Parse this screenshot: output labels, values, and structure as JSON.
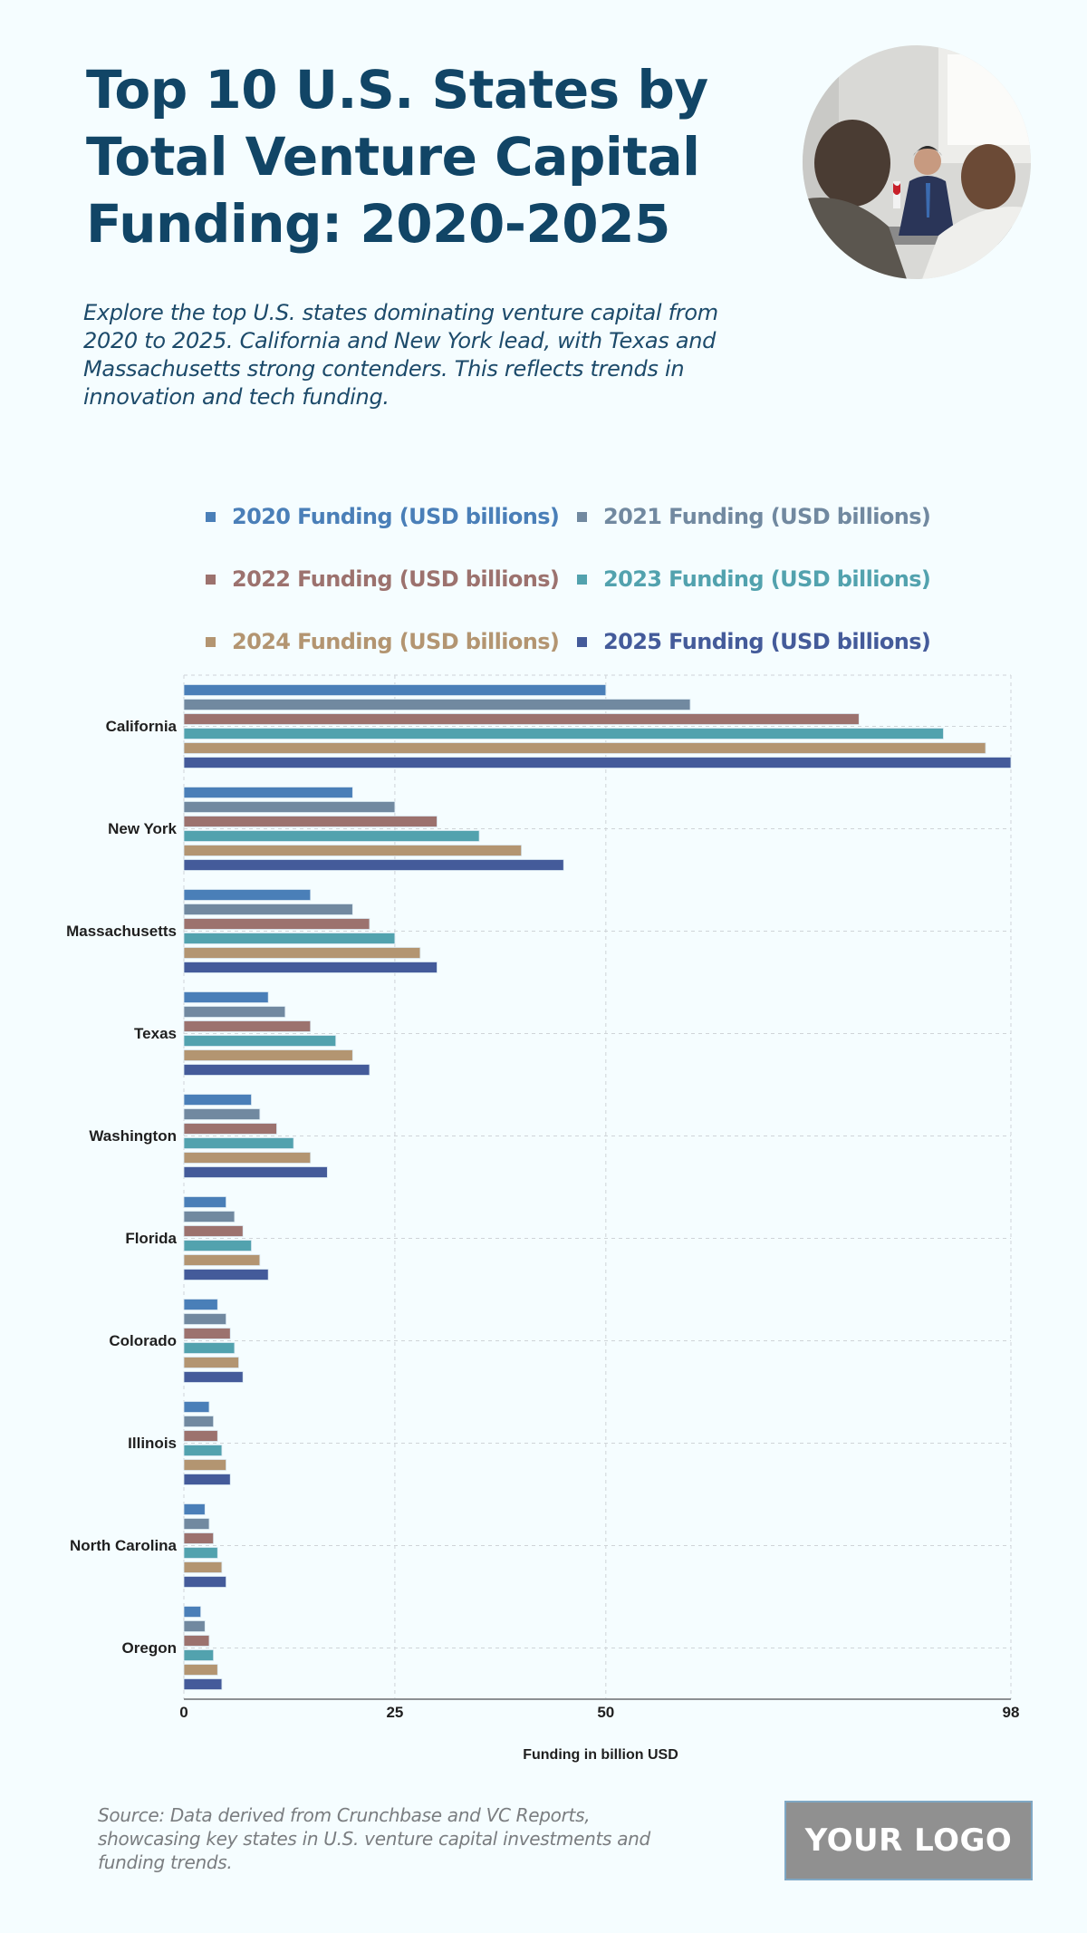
{
  "header": {
    "title": "Top 10 U.S. States by Total Venture Capital Funding: 2020-2025",
    "subtitle": "Explore the top U.S. states dominating venture capital from 2020 to 2025. California and New York lead, with Texas and Massachusetts strong contenders. This reflects trends in innovation and tech funding."
  },
  "footer": {
    "source": "Source: Data derived from Crunchbase and VC Reports, showcasing key states in U.S. venture capital investments and funding trends.",
    "logo_text": "YOUR LOGO"
  },
  "chart_data": {
    "type": "bar",
    "orientation": "horizontal",
    "title": "Top 10 U.S. States by Total Venture Capital Funding: 2020-2025",
    "xlabel": "Funding in billion USD",
    "ylabel": "",
    "xlim": [
      0,
      98
    ],
    "x_ticks": [
      "0",
      "25",
      "50",
      "98"
    ],
    "x_tick_values": [
      0,
      25,
      50,
      98
    ],
    "grid": true,
    "legend_position": "top",
    "categories": [
      "California",
      "New York",
      "Massachusetts",
      "Texas",
      "Washington",
      "Florida",
      "Colorado",
      "Illinois",
      "North Carolina",
      "Oregon"
    ],
    "series": [
      {
        "name": "2020 Funding (USD billions)",
        "color": "#4a7fb8",
        "values": [
          50,
          20,
          15,
          10,
          8,
          5,
          4,
          3,
          2.5,
          2
        ]
      },
      {
        "name": "2021 Funding (USD billions)",
        "color": "#7189a0",
        "values": [
          60,
          25,
          20,
          12,
          9,
          6,
          5,
          3.5,
          3,
          2.5
        ]
      },
      {
        "name": "2022 Funding (USD billions)",
        "color": "#9c726e",
        "values": [
          80,
          30,
          22,
          15,
          11,
          7,
          5.5,
          4,
          3.5,
          3
        ]
      },
      {
        "name": "2023 Funding (USD billions)",
        "color": "#52a2ae",
        "values": [
          90,
          35,
          25,
          18,
          13,
          8,
          6,
          4.5,
          4,
          3.5
        ]
      },
      {
        "name": "2024 Funding (USD billions)",
        "color": "#b39571",
        "values": [
          95,
          40,
          28,
          20,
          15,
          9,
          6.5,
          5,
          4.5,
          4
        ]
      },
      {
        "name": "2025 Funding (USD billions)",
        "color": "#445b9a",
        "values": [
          98,
          45,
          30,
          22,
          17,
          10,
          7,
          5.5,
          5,
          4.5
        ]
      }
    ]
  },
  "colors": {
    "background": "#f5fdff",
    "title": "#114566",
    "grid": "#cccccc",
    "axis": "#888888"
  }
}
